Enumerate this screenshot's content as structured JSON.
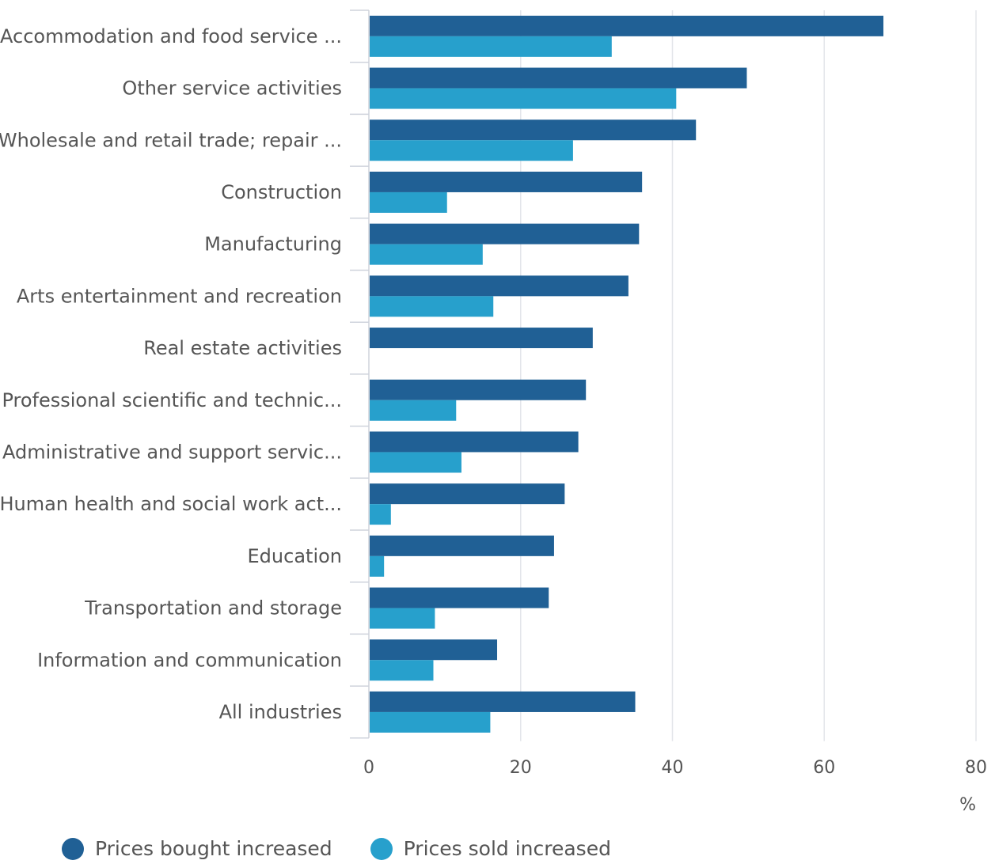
{
  "chart_data": {
    "type": "bar",
    "orientation": "horizontal",
    "categories": [
      "Accommodation and food service ...",
      "Other service activities",
      "Wholesale and retail trade; repair ...",
      "Construction",
      "Manufacturing",
      "Arts entertainment and recreation",
      "Real estate activities",
      "Professional scientific and technic...",
      "Administrative and support servic...",
      "Human health and social work act...",
      "Education",
      "Transportation and storage",
      "Information and communication",
      "All industries"
    ],
    "series": [
      {
        "name": "Prices bought increased",
        "color": "#206095",
        "values": [
          67.8,
          49.8,
          43.1,
          36.0,
          35.6,
          34.2,
          29.5,
          28.6,
          27.6,
          25.8,
          24.4,
          23.7,
          16.9,
          35.1
        ]
      },
      {
        "name": "Prices sold increased",
        "color": "#27a0cc",
        "values": [
          32.0,
          40.5,
          26.9,
          10.3,
          15.0,
          16.4,
          null,
          11.5,
          12.2,
          2.9,
          2.0,
          8.7,
          8.5,
          16.0
        ]
      }
    ],
    "xlim": [
      0,
      80
    ],
    "xticks": [
      0,
      20,
      40,
      60,
      80
    ],
    "xlabel": "%",
    "ylabel": "",
    "grid": true,
    "legend_position": "bottom-left"
  }
}
